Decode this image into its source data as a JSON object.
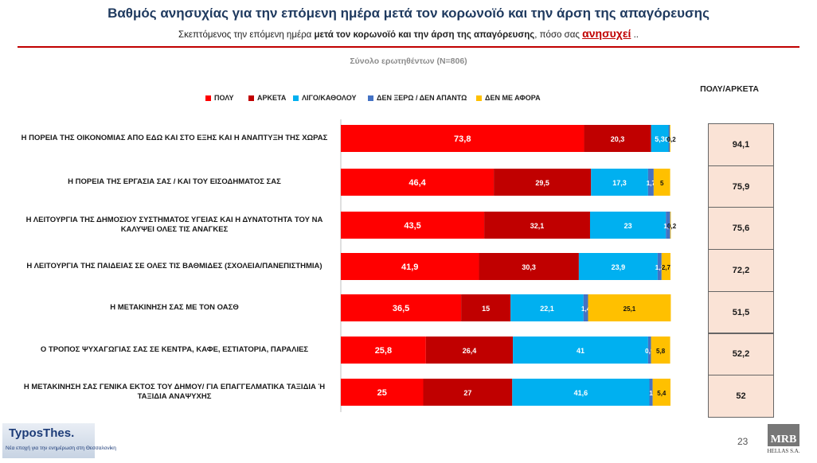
{
  "header": {
    "title": "Βαθμός ανησυχίας για την επόμενη ημέρα μετά τον κορωνοϊό  και την άρση της απαγόρευσης",
    "subtitle_pre": "Σκεπτόμενος την επόμενη ημέρα ",
    "subtitle_bold": "μετά τον κορωνοϊό  και την άρση της απαγόρευσης",
    "subtitle_mid": ", πόσο σας ",
    "subtitle_emph": "ανησυχεί",
    "subtitle_end": " ..",
    "base_label": "Σύνολο ερωτηθέντων (N=806)"
  },
  "totals_header": "ΠΟΛΥ/ΑΡΚΕΤΑ",
  "colors": {
    "polu": "#ff0000",
    "arketa": "#c00000",
    "ligo": "#00b0f0",
    "dk": "#4472c4",
    "afora": "#ffc000"
  },
  "chart_data": {
    "type": "bar",
    "orientation": "horizontal",
    "stacked": true,
    "title": "Σύνολο ερωτηθέντων (N=806)",
    "categories": [
      "Η ΠΟΡΕΙΑ ΤΗΣ ΟΙΚΟΝΟΜΙΑΣ ΑΠΟ ΕΔΩ ΚΑΙ ΣΤΟ ΕΞΗΣ ΚΑΙ Η ΑΝΑΠΤΥΞΗ ΤΗΣ ΧΩΡΑΣ",
      "Η ΠΟΡΕΙΑ ΤΗΣ ΕΡΓΑΣΙΑ ΣΑΣ / ΚΑΙ ΤΟΥ ΕΙΣΟΔΗΜΑΤΟΣ ΣΑΣ",
      "Η ΛΕΙΤΟΥΡΓΙΑ ΤΗΣ ΔΗΜΟΣΙΟΥ ΣΥΣΤΗΜΑΤΟΣ ΥΓΕΙΑΣ ΚΑΙ Η ΔΥΝΑΤΟΤΗΤΑ ΤΟΥ ΝΑ ΚΑΛΥΨΕΙ ΟΛΕΣ ΤΙΣ ΑΝΑΓΚΕΣ",
      "Η ΛΕΙΤΟΥΡΓΙΑ ΤΗΣ ΠΑΙΔΕΙΑΣ ΣΕ ΟΛΕΣ ΤΙΣ ΒΑΘΜΙΔΕΣ (ΣΧΟΛΕΙΑ/ΠΑΝΕΠΙΣΤΗΜΙΑ)",
      "Η ΜΕΤΑΚΙΝΗΣΗ ΣΑΣ ΜΕ ΤΟΝ ΟΑΣΘ",
      "Ο ΤΡΟΠΟΣ ΨΥΧΑΓΩΓΙΑΣ ΣΑΣ ΣΕ ΚΕΝΤΡΑ, ΚΑΦΕ, ΕΣΤΙΑΤΟΡΙΑ, ΠΑΡΑΛΙΕΣ",
      "Η ΜΕΤΑΚΙΝΗΣΗ ΣΑΣ ΓΕΝΙΚΑ ΕΚΤΟΣ ΤΟΥ ΔΗΜΟΥ/ ΓΙΑ ΕΠΑΓΓΕΛΜΑΤΙΚΑ ΤΑΞΙΔΙΑ Ή ΤΑΞΙΔΙΑ ΑΝΑΨΥΧΗΣ"
    ],
    "series": [
      {
        "name": "ΠΟΛΥ",
        "color": "#ff0000",
        "values": [
          73.8,
          46.4,
          43.5,
          41.9,
          36.5,
          25.8,
          25
        ],
        "labels": [
          "73,8",
          "46,4",
          "43,5",
          "41,9",
          "36,5",
          "25,8",
          "25"
        ]
      },
      {
        "name": "ΑΡΚΕΤΑ",
        "color": "#c00000",
        "values": [
          20.3,
          29.5,
          32.1,
          30.3,
          15,
          26.4,
          27
        ],
        "labels": [
          "20,3",
          "29,5",
          "32,1",
          "30,3",
          "15",
          "26,4",
          "27"
        ]
      },
      {
        "name": "ΛΙΓΟ/ΚΑΘΟΛΟΥ",
        "color": "#00b0f0",
        "values": [
          5.3,
          17.3,
          23,
          23.9,
          22.1,
          41,
          41.6
        ],
        "labels": [
          "5,3",
          "17,3",
          "23",
          "23,9",
          "22,1",
          "41",
          "41,6"
        ]
      },
      {
        "name": "ΔΕΝ ΞΕΡΩ / ΔΕΝ ΑΠΑΝΤΩ",
        "color": "#4472c4",
        "values": [
          0.4,
          1.7,
          1.3,
          1.2,
          1.4,
          0.9,
          1
        ],
        "labels": [
          "0,4",
          "1,7",
          "1,3",
          "1,2",
          "1,4",
          "0,9",
          "1"
        ]
      },
      {
        "name": "ΔΕΝ ΜΕ ΑΦΟΡΑ",
        "color": "#ffc000",
        "values": [
          0.2,
          5,
          0.2,
          2.7,
          25.1,
          5.8,
          5.4
        ],
        "labels": [
          "0,2",
          "5",
          "0,2",
          "2,7",
          "25,1",
          "5,8",
          "5,4"
        ]
      }
    ],
    "totals": {
      "name": "ΠΟΛΥ/ΑΡΚΕΤΑ",
      "values": [
        94.1,
        75.9,
        75.6,
        72.2,
        51.5,
        52.2,
        52
      ],
      "labels": [
        "94,1",
        "75,9",
        "75,6",
        "72,2",
        "51,5",
        "52,2",
        "52"
      ]
    },
    "xlim": [
      0,
      100
    ],
    "grid": false,
    "legend": "top"
  },
  "footer": {
    "page": "23",
    "logo_left_name": "TyposThes.",
    "logo_left_tagline": "Νέα εποχή για την ενημέρωση στη Θεσσαλονίκη",
    "logo_right_name": "MRB",
    "logo_right_sub": "HELLAS S.A."
  }
}
